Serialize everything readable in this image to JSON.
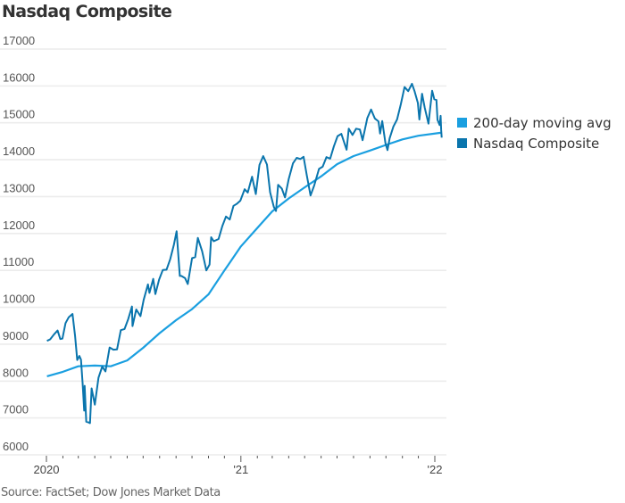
{
  "chart_data": {
    "type": "line",
    "title": "Nasdaq Composite",
    "xlabel": "",
    "ylabel": "",
    "source": "Source: FactSet; Dow Jones Market Data",
    "ylim": [
      6000,
      17000
    ],
    "yticks": [
      6000,
      7000,
      8000,
      9000,
      10000,
      11000,
      12000,
      13000,
      14000,
      15000,
      16000,
      17000
    ],
    "ytick_labels": [
      "6000",
      "7000",
      "8000",
      "9000",
      "10000",
      "11000",
      "12000",
      "13000",
      "14000",
      "15000",
      "16000",
      "17000"
    ],
    "xlim": [
      "2020-01-01",
      "2022-01-14"
    ],
    "xticks_labeled": [
      {
        "date": "2020-01-01",
        "label": "2020"
      },
      {
        "date": "2021-01-01",
        "label": "'21"
      },
      {
        "date": "2022-01-01",
        "label": "'22"
      }
    ],
    "xticks_minor": "monthly",
    "grid": true,
    "legend_position": "right",
    "series": [
      {
        "name": "200-day moving avg",
        "color": "#1a9fe0",
        "points": [
          [
            "2020-01-02",
            8130
          ],
          [
            "2020-02-01",
            8250
          ],
          [
            "2020-03-01",
            8400
          ],
          [
            "2020-04-01",
            8420
          ],
          [
            "2020-05-01",
            8400
          ],
          [
            "2020-06-01",
            8560
          ],
          [
            "2020-07-01",
            8900
          ],
          [
            "2020-08-01",
            9300
          ],
          [
            "2020-09-01",
            9650
          ],
          [
            "2020-10-01",
            9950
          ],
          [
            "2020-11-01",
            10350
          ],
          [
            "2020-12-01",
            11000
          ],
          [
            "2021-01-01",
            11650
          ],
          [
            "2021-02-01",
            12150
          ],
          [
            "2021-03-01",
            12600
          ],
          [
            "2021-04-01",
            12950
          ],
          [
            "2021-05-01",
            13250
          ],
          [
            "2021-06-01",
            13550
          ],
          [
            "2021-07-01",
            13880
          ],
          [
            "2021-08-01",
            14100
          ],
          [
            "2021-09-01",
            14250
          ],
          [
            "2021-10-01",
            14400
          ],
          [
            "2021-11-01",
            14550
          ],
          [
            "2021-12-01",
            14650
          ],
          [
            "2022-01-12",
            14730
          ]
        ]
      },
      {
        "name": "Nasdaq Composite",
        "color": "#0a75ad",
        "points": [
          [
            "2020-01-02",
            9090
          ],
          [
            "2020-01-08",
            9130
          ],
          [
            "2020-01-15",
            9260
          ],
          [
            "2020-01-22",
            9370
          ],
          [
            "2020-01-27",
            9140
          ],
          [
            "2020-01-31",
            9150
          ],
          [
            "2020-02-06",
            9570
          ],
          [
            "2020-02-12",
            9730
          ],
          [
            "2020-02-19",
            9820
          ],
          [
            "2020-02-24",
            9220
          ],
          [
            "2020-02-28",
            8570
          ],
          [
            "2020-03-03",
            8680
          ],
          [
            "2020-03-06",
            8580
          ],
          [
            "2020-03-09",
            7950
          ],
          [
            "2020-03-12",
            7200
          ],
          [
            "2020-03-13",
            7870
          ],
          [
            "2020-03-16",
            6900
          ],
          [
            "2020-03-20",
            6880
          ],
          [
            "2020-03-23",
            6860
          ],
          [
            "2020-03-26",
            7800
          ],
          [
            "2020-04-01",
            7360
          ],
          [
            "2020-04-08",
            8090
          ],
          [
            "2020-04-15",
            8390
          ],
          [
            "2020-04-21",
            8260
          ],
          [
            "2020-04-29",
            8910
          ],
          [
            "2020-05-06",
            8850
          ],
          [
            "2020-05-13",
            8860
          ],
          [
            "2020-05-20",
            9380
          ],
          [
            "2020-05-27",
            9410
          ],
          [
            "2020-06-03",
            9680
          ],
          [
            "2020-06-10",
            10020
          ],
          [
            "2020-06-11",
            9490
          ],
          [
            "2020-06-18",
            9940
          ],
          [
            "2020-06-26",
            9760
          ],
          [
            "2020-07-02",
            10200
          ],
          [
            "2020-07-10",
            10620
          ],
          [
            "2020-07-13",
            10390
          ],
          [
            "2020-07-20",
            10770
          ],
          [
            "2020-07-24",
            10360
          ],
          [
            "2020-07-31",
            10750
          ],
          [
            "2020-08-07",
            11010
          ],
          [
            "2020-08-14",
            11020
          ],
          [
            "2020-08-21",
            11310
          ],
          [
            "2020-08-28",
            11700
          ],
          [
            "2020-09-02",
            12060
          ],
          [
            "2020-09-08",
            10850
          ],
          [
            "2020-09-11",
            10850
          ],
          [
            "2020-09-18",
            10790
          ],
          [
            "2020-09-23",
            10630
          ],
          [
            "2020-10-01",
            11330
          ],
          [
            "2020-10-07",
            11360
          ],
          [
            "2020-10-12",
            11880
          ],
          [
            "2020-10-20",
            11520
          ],
          [
            "2020-10-28",
            11000
          ],
          [
            "2020-11-03",
            11160
          ],
          [
            "2020-11-06",
            11900
          ],
          [
            "2020-11-11",
            11790
          ],
          [
            "2020-11-20",
            11850
          ],
          [
            "2020-11-27",
            12200
          ],
          [
            "2020-12-04",
            12460
          ],
          [
            "2020-12-11",
            12380
          ],
          [
            "2020-12-18",
            12750
          ],
          [
            "2020-12-24",
            12800
          ],
          [
            "2020-12-31",
            12890
          ],
          [
            "2021-01-08",
            13200
          ],
          [
            "2021-01-14",
            13110
          ],
          [
            "2021-01-22",
            13540
          ],
          [
            "2021-01-29",
            13070
          ],
          [
            "2021-02-05",
            13860
          ],
          [
            "2021-02-12",
            14100
          ],
          [
            "2021-02-19",
            13870
          ],
          [
            "2021-02-25",
            13120
          ],
          [
            "2021-03-04",
            12720
          ],
          [
            "2021-03-08",
            12610
          ],
          [
            "2021-03-12",
            13320
          ],
          [
            "2021-03-19",
            13220
          ],
          [
            "2021-03-25",
            12980
          ],
          [
            "2021-04-01",
            13480
          ],
          [
            "2021-04-09",
            13900
          ],
          [
            "2021-04-16",
            14050
          ],
          [
            "2021-04-23",
            14020
          ],
          [
            "2021-04-29",
            14080
          ],
          [
            "2021-05-05",
            13580
          ],
          [
            "2021-05-12",
            13030
          ],
          [
            "2021-05-19",
            13300
          ],
          [
            "2021-05-28",
            13750
          ],
          [
            "2021-06-04",
            13810
          ],
          [
            "2021-06-11",
            14070
          ],
          [
            "2021-06-18",
            14030
          ],
          [
            "2021-06-25",
            14360
          ],
          [
            "2021-07-02",
            14640
          ],
          [
            "2021-07-09",
            14700
          ],
          [
            "2021-07-19",
            14270
          ],
          [
            "2021-07-23",
            14840
          ],
          [
            "2021-07-30",
            14670
          ],
          [
            "2021-08-06",
            14840
          ],
          [
            "2021-08-13",
            14820
          ],
          [
            "2021-08-18",
            14530
          ],
          [
            "2021-08-27",
            15130
          ],
          [
            "2021-09-03",
            15360
          ],
          [
            "2021-09-10",
            15120
          ],
          [
            "2021-09-17",
            15040
          ],
          [
            "2021-09-20",
            14710
          ],
          [
            "2021-09-24",
            15050
          ],
          [
            "2021-09-30",
            14450
          ],
          [
            "2021-10-04",
            14260
          ],
          [
            "2021-10-08",
            14580
          ],
          [
            "2021-10-15",
            14900
          ],
          [
            "2021-10-22",
            15090
          ],
          [
            "2021-10-29",
            15500
          ],
          [
            "2021-11-05",
            15970
          ],
          [
            "2021-11-12",
            15860
          ],
          [
            "2021-11-19",
            16060
          ],
          [
            "2021-11-24",
            15850
          ],
          [
            "2021-11-30",
            15540
          ],
          [
            "2021-12-03",
            15090
          ],
          [
            "2021-12-08",
            15790
          ],
          [
            "2021-12-13",
            15410
          ],
          [
            "2021-12-20",
            14980
          ],
          [
            "2021-12-27",
            15870
          ],
          [
            "2021-12-31",
            15640
          ],
          [
            "2022-01-04",
            15620
          ],
          [
            "2022-01-06",
            15080
          ],
          [
            "2022-01-10",
            14940
          ],
          [
            "2022-01-12",
            15190
          ],
          [
            "2022-01-13",
            14810
          ],
          [
            "2022-01-14",
            14600
          ]
        ]
      }
    ]
  },
  "legend": {
    "items": [
      {
        "label": "200-day moving avg",
        "color": "#1a9fe0"
      },
      {
        "label": "Nasdaq Composite",
        "color": "#0a75ad"
      }
    ]
  }
}
